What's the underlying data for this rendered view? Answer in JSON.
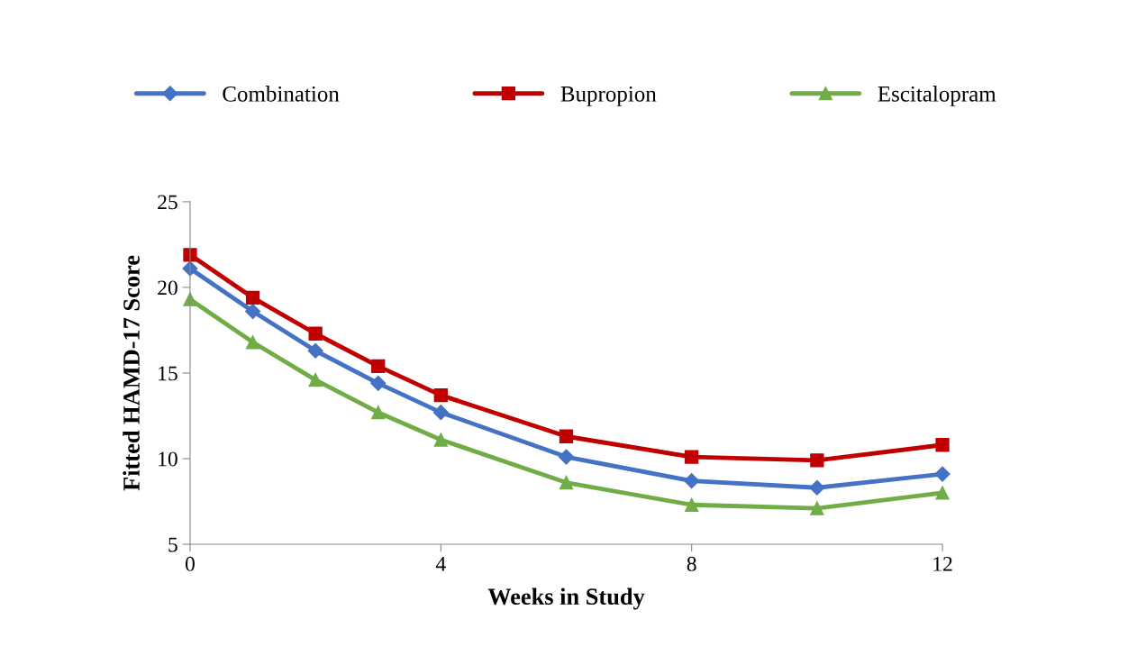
{
  "chart_data": {
    "type": "line",
    "xlabel": "Weeks in Study",
    "ylabel": "Fitted HAMD-17 Score",
    "x": [
      0,
      1,
      2,
      3,
      4,
      6,
      8,
      10,
      12
    ],
    "series": [
      {
        "name": "Combination",
        "color": "#4472c4",
        "marker": "diamond",
        "values": [
          21.1,
          18.6,
          16.3,
          14.4,
          12.7,
          10.1,
          8.7,
          8.3,
          9.1
        ]
      },
      {
        "name": "Bupropion",
        "color": "#c00000",
        "marker": "square",
        "values": [
          21.9,
          19.4,
          17.3,
          15.4,
          13.7,
          11.3,
          10.1,
          9.9,
          10.8
        ]
      },
      {
        "name": "Escitalopram",
        "color": "#70ad47",
        "marker": "triangle",
        "values": [
          19.3,
          16.8,
          14.6,
          12.7,
          11.1,
          8.6,
          7.3,
          7.1,
          8.0
        ]
      }
    ],
    "xlim": [
      0,
      12
    ],
    "xticks": [
      0,
      4,
      8,
      12
    ],
    "ylim": [
      5,
      25
    ],
    "yticks": [
      5,
      10,
      15,
      20,
      25
    ],
    "grid": false,
    "legend": "top",
    "line_style": "solid"
  }
}
